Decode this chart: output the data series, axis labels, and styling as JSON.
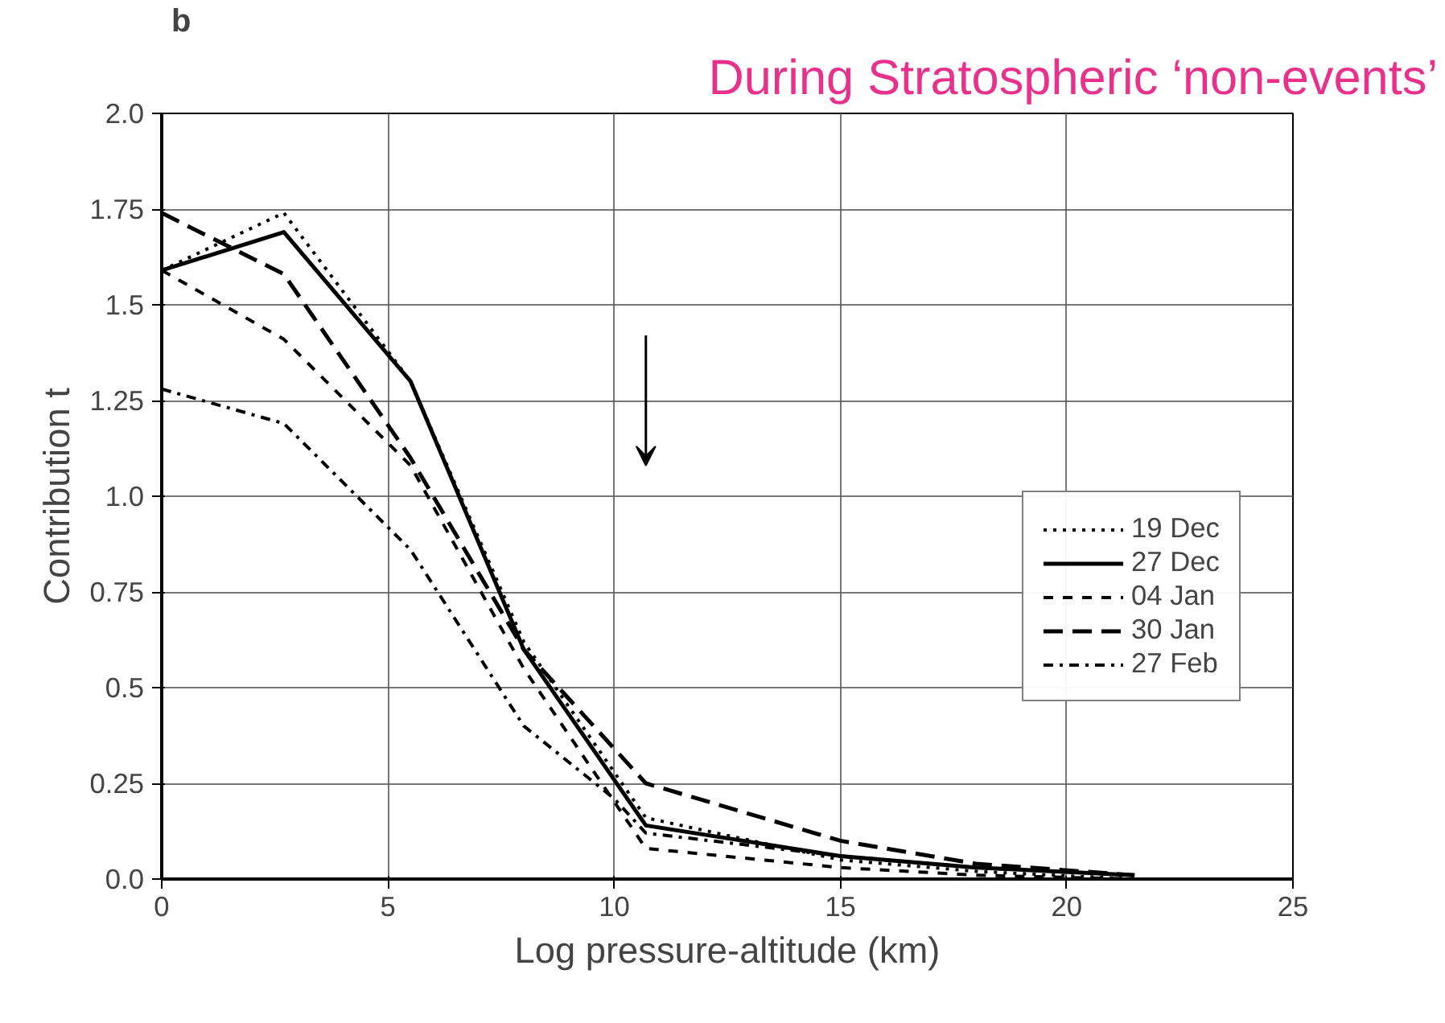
{
  "chart_data": {
    "type": "line",
    "title": "During Stratospheric ‘non-events’",
    "xlabel": "Log pressure-altitude (km)",
    "ylabel": "Contribution t",
    "annotations": [
      "b"
    ],
    "xlim": [
      0,
      25
    ],
    "ylim": [
      0,
      2.0
    ],
    "xticks": [
      0,
      5,
      10,
      15,
      20,
      25
    ],
    "yticks": [
      {
        "value": 0,
        "label": "0.0"
      },
      0.25,
      0.5,
      0.75,
      {
        "value": 1,
        "label": "1.0"
      },
      1.25,
      1.5,
      1.75,
      {
        "value": 2,
        "label": "2.0"
      }
    ],
    "grid": true,
    "legend": "bottom right",
    "marker": "none",
    "series": [
      {
        "name": "19 Dec",
        "color": "#000000",
        "line_style": "dotted",
        "x": [
          0,
          2.7,
          5.5,
          8,
          10.7,
          15,
          18,
          21.5
        ],
        "values": [
          1.59,
          1.74,
          1.3,
          0.62,
          0.16,
          0.05,
          0.02,
          0.0
        ]
      },
      {
        "name": "27 Dec",
        "color": "#000000",
        "line_style": "solid",
        "x": [
          0,
          2.7,
          5.5,
          8,
          10.7,
          15,
          18,
          21.5
        ],
        "values": [
          1.59,
          1.69,
          1.3,
          0.6,
          0.14,
          0.06,
          0.03,
          0.01
        ]
      },
      {
        "name": "04 Jan",
        "color": "#000000",
        "line_style": "dashed",
        "x": [
          0,
          2.7,
          5.5,
          8,
          10.7,
          15,
          18,
          21.5
        ],
        "values": [
          1.59,
          1.41,
          1.08,
          0.55,
          0.08,
          0.03,
          0.01,
          0.0
        ]
      },
      {
        "name": "30 Jan",
        "color": "#000000",
        "line_style": "longdash",
        "x": [
          0,
          2.7,
          5.5,
          8,
          10.7,
          15,
          18,
          21.5
        ],
        "values": [
          1.74,
          1.58,
          1.1,
          0.6,
          0.25,
          0.1,
          0.04,
          0.01
        ]
      },
      {
        "name": "27 Feb",
        "color": "#000000",
        "line_style": "dashdot",
        "x": [
          0,
          2.7,
          5.5,
          8,
          10,
          10.7,
          15,
          18,
          21.5
        ],
        "values": [
          1.28,
          1.19,
          0.86,
          0.4,
          0.21,
          0.12,
          0.06,
          0.03,
          0.01
        ]
      }
    ]
  }
}
